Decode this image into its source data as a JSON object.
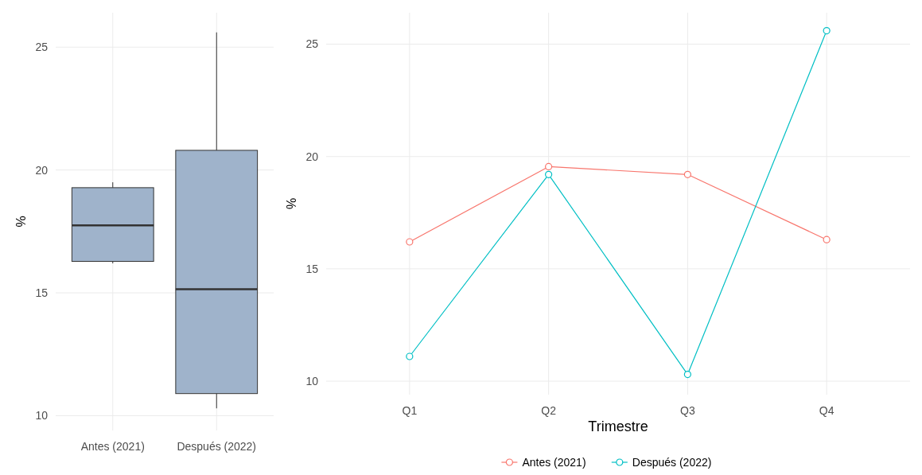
{
  "chart_data": [
    {
      "type": "box",
      "categories": [
        "Antes (2021)",
        "Después (2022)"
      ],
      "ylabel": "%",
      "ylim": [
        9.4,
        26.4
      ],
      "yticks": [
        10,
        15,
        20,
        25
      ],
      "grid": true,
      "color": "#9fb3cb",
      "boxes": [
        {
          "low": 16.2,
          "q1": 16.28,
          "median": 17.75,
          "q3": 19.28,
          "high": 19.5
        },
        {
          "low": 10.3,
          "q1": 10.9,
          "median": 15.15,
          "q3": 20.8,
          "high": 25.6
        }
      ]
    },
    {
      "type": "line",
      "categories": [
        "Q1",
        "Q2",
        "Q3",
        "Q4"
      ],
      "xlabel": "Trimestre",
      "ylabel": "%",
      "ylim": [
        9.4,
        26.4
      ],
      "yticks": [
        10,
        15,
        20,
        25
      ],
      "grid": true,
      "marker": "circle",
      "legend": "bottom",
      "series": [
        {
          "name": "Antes (2021)",
          "color": "#f8766d",
          "values": [
            16.2,
            19.55,
            19.2,
            16.3
          ]
        },
        {
          "name": "Después (2022)",
          "color": "#00bfc4",
          "values": [
            11.1,
            19.2,
            10.3,
            25.6
          ]
        }
      ]
    }
  ]
}
